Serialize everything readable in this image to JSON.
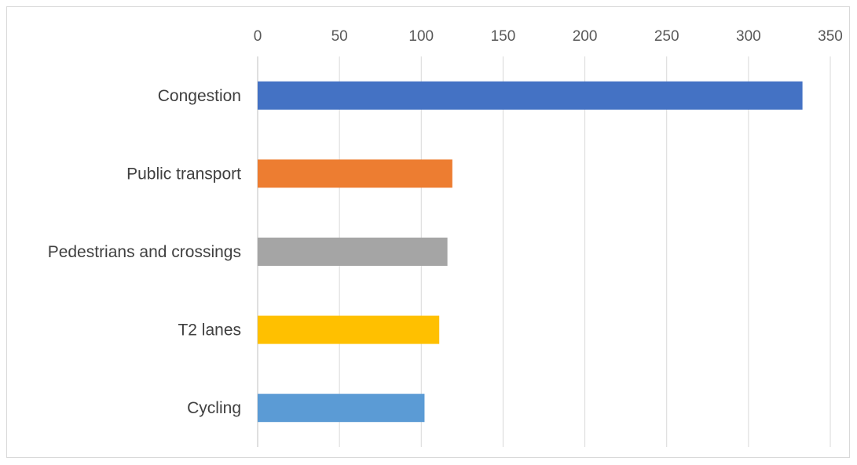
{
  "chart_data": {
    "type": "bar",
    "orientation": "horizontal",
    "title": "",
    "xlabel": "",
    "ylabel": "",
    "categories": [
      "Congestion",
      "Public transport",
      "Pedestrians and crossings",
      "T2 lanes",
      "Cycling"
    ],
    "values": [
      333,
      119,
      116,
      111,
      102
    ],
    "colors": [
      "#4472C4",
      "#ED7D31",
      "#A5A5A5",
      "#FFC000",
      "#5B9BD5"
    ],
    "xlim": [
      0,
      350
    ],
    "x_ticks": [
      0,
      50,
      100,
      150,
      200,
      250,
      300,
      350
    ],
    "x_axis_position": "top",
    "grid": true,
    "legend": "none"
  }
}
